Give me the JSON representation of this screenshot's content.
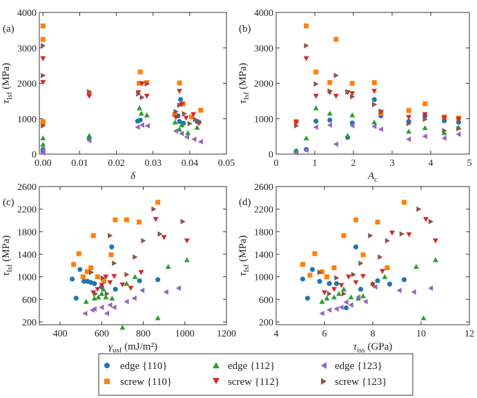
{
  "legend": [
    {
      "key": "edge110",
      "label": "edge {110}",
      "color": "#1f77b4",
      "marker": "circle"
    },
    {
      "key": "edge112",
      "label": "edge {112}",
      "color": "#2ca02c",
      "marker": "triangle-up"
    },
    {
      "key": "edge123",
      "label": "edge {123}",
      "color": "#9467bd",
      "marker": "triangle-left"
    },
    {
      "key": "screw110",
      "label": "screw {110}",
      "color": "#ff7f0e",
      "marker": "square"
    },
    {
      "key": "screw112",
      "label": "screw {112}",
      "color": "#d62728",
      "marker": "triangle-down"
    },
    {
      "key": "screw123",
      "label": "screw {123}",
      "color": "#8c564b",
      "marker": "triangle-right"
    }
  ],
  "chart_data": [
    {
      "type": "scatter",
      "panel": "(a)",
      "ylabel_main": "τ",
      "ylabel_sub": "Isf",
      "ylabel_unit": "(MPa)",
      "xlabel_main": "δ",
      "xlabel_sub": "",
      "xlabel_unit": "",
      "xlim": [
        -0.001,
        0.05
      ],
      "ylim": [
        0,
        4000
      ],
      "xticks": [
        0.0,
        0.01,
        0.02,
        0.03,
        0.04,
        0.05
      ],
      "xtick_labels": [
        "0.00",
        "0.01",
        "0.02",
        "0.03",
        "0.04",
        "0.05"
      ],
      "yticks": [
        0,
        1000,
        2000,
        3000,
        4000
      ],
      "ytick_labels": [
        "0",
        "1000",
        "2000",
        "3000",
        "4000"
      ],
      "series": [
        {
          "key": "edge110",
          "x": [
            0.0,
            0.0,
            0.0126,
            0.0258,
            0.0265,
            0.0368,
            0.0372,
            0.0375,
            0.0383,
            0.042,
            0.0425
          ],
          "y": [
            80,
            130,
            450,
            930,
            960,
            1080,
            920,
            1540,
            870,
            920,
            900
          ]
        },
        {
          "key": "edge112",
          "x": [
            0.0,
            0.0,
            0.0126,
            0.0263,
            0.0268,
            0.0283,
            0.036,
            0.0372,
            0.0378,
            0.0395,
            0.042
          ],
          "y": [
            270,
            450,
            520,
            1300,
            1150,
            1100,
            900,
            700,
            820,
            600,
            750
          ]
        },
        {
          "key": "edge123",
          "x": [
            0.0,
            0.0,
            0.0126,
            0.0258,
            0.027,
            0.0285,
            0.0362,
            0.0378,
            0.0392,
            0.0412,
            0.043
          ],
          "y": [
            30,
            110,
            380,
            760,
            820,
            800,
            650,
            580,
            480,
            420,
            350
          ]
        },
        {
          "key": "screw110",
          "x": [
            0.0,
            0.0,
            0.0,
            0.0,
            0.0126,
            0.0262,
            0.0265,
            0.0283,
            0.0359,
            0.0372,
            0.0382,
            0.0405,
            0.043
          ],
          "y": [
            3620,
            3240,
            920,
            880,
            1720,
            2000,
            2320,
            2020,
            1120,
            2010,
            1420,
            1050,
            1240
          ]
        },
        {
          "key": "screw112",
          "x": [
            0.0,
            0.0,
            0.0126,
            0.026,
            0.027,
            0.0283,
            0.0362,
            0.0372,
            0.0378,
            0.039,
            0.041,
            0.0425
          ],
          "y": [
            2700,
            2030,
            1640,
            1740,
            1990,
            1640,
            1040,
            1780,
            1400,
            1020,
            1120,
            870
          ]
        },
        {
          "key": "screw123",
          "x": [
            0.0,
            0.0,
            0.0,
            0.0126,
            0.026,
            0.027,
            0.0283,
            0.0362,
            0.0372,
            0.0385,
            0.04,
            0.0415
          ],
          "y": [
            3060,
            2220,
            800,
            1760,
            1700,
            1600,
            1980,
            1200,
            1380,
            1140,
            860,
            980
          ]
        }
      ]
    },
    {
      "type": "scatter",
      "panel": "(b)",
      "ylabel_main": "τ",
      "ylabel_sub": "Isf",
      "ylabel_unit": "(MPa)",
      "xlabel_main": "A",
      "xlabel_sub": "c",
      "xlabel_unit": "",
      "xlim": [
        0,
        5
      ],
      "ylim": [
        0,
        4000
      ],
      "xticks": [
        0,
        1,
        2,
        3,
        4,
        5
      ],
      "xtick_labels": [
        "0",
        "1",
        "2",
        "3",
        "4",
        "5"
      ],
      "yticks": [
        0,
        1000,
        2000,
        3000,
        4000
      ],
      "ytick_labels": [
        "0",
        "1000",
        "2000",
        "3000",
        "4000"
      ],
      "series": [
        {
          "key": "edge110",
          "x": [
            0.52,
            0.78,
            1.03,
            1.39,
            1.85,
            1.97,
            2.54,
            2.71,
            3.43,
            3.85,
            4.35,
            4.72
          ],
          "y": [
            80,
            130,
            930,
            960,
            470,
            880,
            1540,
            1080,
            920,
            1080,
            940,
            900
          ]
        },
        {
          "key": "edge112",
          "x": [
            0.52,
            0.78,
            1.03,
            1.39,
            1.85,
            1.97,
            2.54,
            2.71,
            3.43,
            3.85,
            4.35,
            4.72
          ],
          "y": [
            100,
            450,
            1300,
            1150,
            520,
            1100,
            900,
            1180,
            640,
            740,
            600,
            750
          ]
        },
        {
          "key": "edge123",
          "x": [
            0.52,
            0.78,
            1.03,
            1.39,
            1.55,
            1.97,
            2.54,
            2.71,
            3.43,
            3.85,
            4.35,
            4.72
          ],
          "y": [
            30,
            110,
            760,
            820,
            280,
            800,
            780,
            700,
            420,
            500,
            450,
            560
          ]
        },
        {
          "key": "screw110",
          "x": [
            0.52,
            0.78,
            1.03,
            1.39,
            1.55,
            1.97,
            2.54,
            2.71,
            3.43,
            3.85,
            4.35,
            4.72
          ],
          "y": [
            920,
            3620,
            2320,
            2020,
            3240,
            2000,
            2020,
            1150,
            1230,
            1420,
            1050,
            1020
          ]
        },
        {
          "key": "screw112",
          "x": [
            0.52,
            0.78,
            1.03,
            1.39,
            1.55,
            1.85,
            1.97,
            2.54,
            2.71,
            3.43,
            3.85,
            4.35,
            4.72
          ],
          "y": [
            900,
            2700,
            1640,
            1740,
            1640,
            1740,
            1710,
            1780,
            1190,
            1040,
            1120,
            1020,
            990
          ]
        },
        {
          "key": "screw123",
          "x": [
            0.52,
            0.78,
            1.03,
            1.39,
            1.55,
            1.85,
            1.97,
            2.54,
            2.71,
            3.43,
            3.85,
            4.35,
            4.72
          ],
          "y": [
            800,
            3060,
            1980,
            1780,
            2220,
            1760,
            1620,
            1400,
            1210,
            860,
            980,
            660,
            720
          ]
        }
      ]
    },
    {
      "type": "scatter",
      "panel": "(c)",
      "ylabel_main": "τ",
      "ylabel_sub": "Isf",
      "ylabel_unit": "(MPa)",
      "xlabel_main": "γ",
      "xlabel_sub": "usf",
      "xlabel_unit": "(mJ/m²)",
      "xlim": [
        300,
        1200
      ],
      "ylim": [
        150,
        2600
      ],
      "xticks": [
        400,
        600,
        800,
        1000,
        1200
      ],
      "xtick_labels": [
        "400",
        "600",
        "800",
        "1000",
        "1200"
      ],
      "yticks": [
        200,
        600,
        1000,
        1400,
        1800,
        2200,
        2600
      ],
      "ytick_labels": [
        "200",
        "600",
        "1000",
        "1400",
        "1800",
        "2200",
        "2600"
      ],
      "series": [
        {
          "key": "edge110",
          "x": [
            458,
            477,
            495,
            515,
            532,
            548,
            565,
            600,
            648,
            666,
            782,
            870
          ],
          "y": [
            960,
            620,
            1130,
            920,
            920,
            900,
            880,
            820,
            1530,
            780,
            930,
            950
          ]
        },
        {
          "key": "edge112",
          "x": [
            525,
            565,
            584,
            600,
            608,
            620,
            650,
            700,
            720,
            760,
            870,
            920,
            1010
          ],
          "y": [
            560,
            620,
            640,
            700,
            780,
            640,
            620,
            100,
            880,
            1000,
            270,
            1180,
            1300
          ]
        },
        {
          "key": "edge123",
          "x": [
            520,
            555,
            565,
            600,
            625,
            640,
            660,
            720,
            757,
            795,
            910,
            970
          ],
          "y": [
            350,
            410,
            430,
            460,
            350,
            500,
            460,
            560,
            620,
            760,
            730,
            800
          ]
        },
        {
          "key": "screw110",
          "x": [
            465,
            490,
            510,
            530,
            548,
            560,
            580,
            610,
            645,
            665,
            720,
            780,
            870
          ],
          "y": [
            1220,
            1410,
            1000,
            1090,
            1160,
            1730,
            1000,
            920,
            1390,
            2010,
            2010,
            1970,
            2320
          ]
        },
        {
          "key": "screw112",
          "x": [
            560,
            580,
            600,
            620,
            640,
            660,
            700,
            740,
            790,
            860,
            900,
            1010
          ],
          "y": [
            720,
            780,
            850,
            1000,
            900,
            1010,
            860,
            800,
            1080,
            2020,
            1700,
            1640
          ]
        },
        {
          "key": "screw123",
          "x": [
            550,
            570,
            605,
            625,
            640,
            660,
            720,
            760,
            800,
            850,
            880,
            990
          ],
          "y": [
            1080,
            700,
            980,
            700,
            1730,
            1240,
            1040,
            1350,
            1640,
            2200,
            1760,
            1980
          ]
        }
      ]
    },
    {
      "type": "scatter",
      "panel": "(d)",
      "ylabel_main": "τ",
      "ylabel_sub": "Isf",
      "ylabel_unit": "(MPa)",
      "xlabel_main": "τ",
      "xlabel_sub": "iss",
      "xlabel_unit": "(GPa)",
      "xlim": [
        4,
        12
      ],
      "ylim": [
        150,
        2600
      ],
      "xticks": [
        4,
        6,
        8,
        10,
        12
      ],
      "xtick_labels": [
        "4",
        "6",
        "8",
        "10",
        "12"
      ],
      "yticks": [
        200,
        600,
        1000,
        1400,
        1800,
        2200,
        2600
      ],
      "ytick_labels": [
        "200",
        "600",
        "1000",
        "1400",
        "1800",
        "2200",
        "2600"
      ],
      "series": [
        {
          "key": "edge110",
          "x": [
            5.1,
            5.3,
            5.5,
            5.8,
            6.2,
            6.5,
            6.9,
            7.3,
            7.5,
            8.2,
            8.7,
            9.3
          ],
          "y": [
            960,
            620,
            1130,
            920,
            880,
            880,
            450,
            1530,
            780,
            930,
            870,
            950
          ]
        },
        {
          "key": "edge112",
          "x": [
            5.9,
            6.1,
            6.4,
            6.6,
            6.8,
            7.1,
            7.4,
            7.6,
            8.0,
            8.5,
            9.8,
            10.1,
            10.6
          ],
          "y": [
            560,
            620,
            640,
            700,
            780,
            640,
            620,
            660,
            880,
            1000,
            1180,
            270,
            1300
          ]
        },
        {
          "key": "edge123",
          "x": [
            5.9,
            6.2,
            6.5,
            6.7,
            6.9,
            7.1,
            7.4,
            7.7,
            8.1,
            9.1,
            9.7,
            10.4
          ],
          "y": [
            350,
            410,
            430,
            460,
            550,
            500,
            640,
            560,
            820,
            760,
            730,
            800
          ]
        },
        {
          "key": "screw110",
          "x": [
            5.1,
            5.4,
            5.6,
            5.9,
            6.1,
            6.4,
            6.8,
            7.3,
            7.6,
            8.2,
            8.6,
            9.3
          ],
          "y": [
            1220,
            1030,
            1410,
            1090,
            1000,
            1160,
            1730,
            2010,
            1390,
            1970,
            1160,
            2320
          ]
        },
        {
          "key": "screw112",
          "x": [
            6.0,
            6.4,
            6.7,
            7.0,
            7.3,
            7.6,
            8.0,
            8.4,
            8.8,
            9.5,
            10.2,
            10.6
          ],
          "y": [
            720,
            780,
            850,
            1000,
            900,
            1010,
            860,
            1100,
            1780,
            1750,
            2020,
            1640
          ]
        },
        {
          "key": "screw123",
          "x": [
            5.8,
            6.2,
            6.5,
            6.8,
            7.2,
            7.5,
            7.9,
            8.3,
            8.6,
            9.2,
            9.9,
            10.4
          ],
          "y": [
            1080,
            700,
            980,
            700,
            1040,
            1240,
            1730,
            1350,
            1640,
            1760,
            2200,
            1980
          ]
        }
      ]
    }
  ]
}
